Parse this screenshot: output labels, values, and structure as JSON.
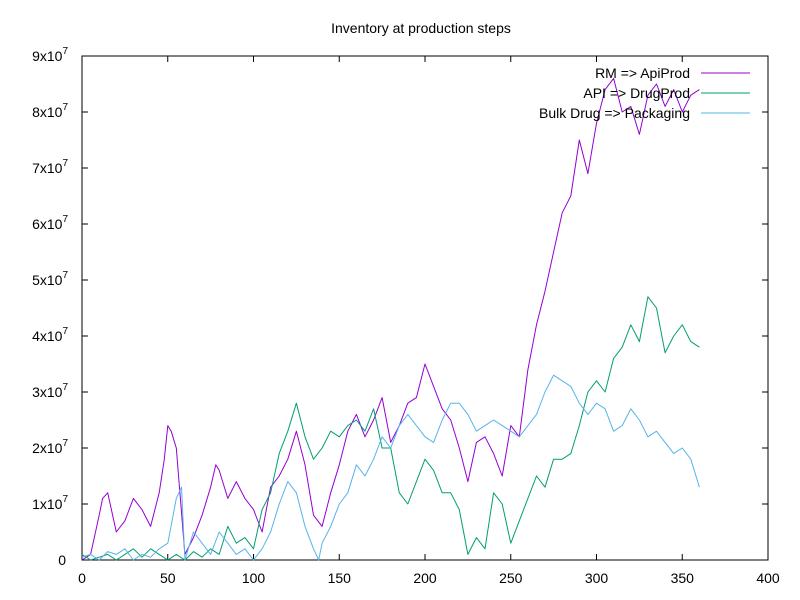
{
  "chart_data": {
    "type": "line",
    "title": "Inventory at production steps",
    "xlabel": "",
    "ylabel": "",
    "xlim": [
      0,
      400
    ],
    "ylim": [
      0,
      90000000
    ],
    "x_ticks": [
      {
        "value": 0,
        "label": "0"
      },
      {
        "value": 50,
        "label": "50"
      },
      {
        "value": 100,
        "label": "100"
      },
      {
        "value": 150,
        "label": "150"
      },
      {
        "value": 200,
        "label": "200"
      },
      {
        "value": 250,
        "label": "250"
      },
      {
        "value": 300,
        "label": "300"
      },
      {
        "value": 350,
        "label": "350"
      },
      {
        "value": 400,
        "label": "400"
      }
    ],
    "y_ticks": [
      {
        "value": 0,
        "label": "0",
        "mantissa": "",
        "exp": ""
      },
      {
        "value": 10000000,
        "label": "1x10^7",
        "mantissa": "1x10",
        "exp": "7"
      },
      {
        "value": 20000000,
        "label": "2x10^7",
        "mantissa": "2x10",
        "exp": "7"
      },
      {
        "value": 30000000,
        "label": "3x10^7",
        "mantissa": "3x10",
        "exp": "7"
      },
      {
        "value": 40000000,
        "label": "4x10^7",
        "mantissa": "4x10",
        "exp": "7"
      },
      {
        "value": 50000000,
        "label": "5x10^7",
        "mantissa": "5x10",
        "exp": "7"
      },
      {
        "value": 60000000,
        "label": "6x10^7",
        "mantissa": "6x10",
        "exp": "7"
      },
      {
        "value": 70000000,
        "label": "7x10^7",
        "mantissa": "7x10",
        "exp": "7"
      },
      {
        "value": 80000000,
        "label": "8x10^7",
        "mantissa": "8x10",
        "exp": "7"
      },
      {
        "value": 90000000,
        "label": "9x10^7",
        "mantissa": "9x10",
        "exp": "7"
      }
    ],
    "grid": false,
    "legend_position": "top-right",
    "series": [
      {
        "name": "RM => ApiProd",
        "color": "#9400d3",
        "x": [
          0,
          5,
          10,
          12,
          15,
          20,
          25,
          30,
          35,
          40,
          45,
          48,
          50,
          52,
          55,
          60,
          65,
          70,
          75,
          78,
          80,
          85,
          90,
          95,
          100,
          105,
          110,
          115,
          120,
          125,
          130,
          135,
          140,
          145,
          150,
          155,
          160,
          165,
          170,
          175,
          180,
          185,
          190,
          195,
          200,
          205,
          210,
          215,
          220,
          225,
          230,
          235,
          240,
          245,
          250,
          255,
          260,
          265,
          270,
          275,
          280,
          285,
          290,
          295,
          300,
          305,
          310,
          315,
          320,
          325,
          330,
          335,
          340,
          345,
          350,
          355,
          360
        ],
        "y": [
          0,
          1000000,
          8000000,
          11000000,
          12000000,
          5000000,
          7000000,
          11000000,
          9000000,
          6000000,
          12000000,
          18000000,
          24000000,
          23000000,
          20000000,
          1000000,
          4000000,
          8000000,
          13000000,
          17000000,
          16000000,
          11000000,
          14000000,
          11000000,
          9000000,
          5000000,
          13000000,
          15000000,
          18000000,
          23000000,
          17000000,
          8000000,
          6000000,
          12000000,
          17000000,
          23000000,
          26000000,
          22000000,
          25000000,
          29000000,
          21000000,
          24000000,
          28000000,
          29000000,
          35000000,
          31000000,
          27000000,
          25000000,
          20000000,
          14000000,
          21000000,
          22000000,
          19000000,
          15000000,
          24000000,
          22000000,
          34000000,
          42000000,
          48000000,
          55000000,
          62000000,
          65000000,
          75000000,
          69000000,
          78000000,
          84000000,
          86000000,
          80000000,
          81000000,
          76000000,
          83000000,
          85000000,
          81000000,
          84000000,
          80000000,
          83000000,
          84000000
        ]
      },
      {
        "name": "API => DrugProd",
        "color": "#009e73",
        "x": [
          0,
          5,
          10,
          15,
          20,
          25,
          30,
          35,
          40,
          45,
          50,
          55,
          60,
          65,
          70,
          75,
          80,
          85,
          90,
          95,
          100,
          105,
          110,
          115,
          120,
          125,
          130,
          135,
          140,
          145,
          150,
          155,
          160,
          165,
          170,
          175,
          180,
          185,
          190,
          195,
          200,
          205,
          210,
          215,
          220,
          225,
          230,
          235,
          240,
          245,
          250,
          255,
          260,
          265,
          270,
          275,
          280,
          285,
          290,
          295,
          300,
          305,
          310,
          315,
          320,
          325,
          330,
          335,
          340,
          345,
          350,
          355,
          360
        ],
        "y": [
          1000000,
          0,
          500000,
          1000000,
          0,
          1000000,
          2000000,
          500000,
          2000000,
          1000000,
          0,
          1000000,
          0,
          1500000,
          500000,
          2000000,
          1000000,
          6000000,
          3000000,
          4000000,
          2000000,
          9000000,
          12000000,
          19000000,
          23000000,
          28000000,
          22000000,
          18000000,
          20000000,
          23000000,
          22000000,
          24000000,
          25000000,
          23000000,
          27000000,
          20000000,
          20000000,
          12000000,
          10000000,
          14000000,
          18000000,
          16000000,
          12000000,
          12000000,
          9000000,
          1000000,
          4000000,
          2000000,
          12000000,
          10000000,
          3000000,
          7000000,
          11000000,
          15000000,
          13000000,
          18000000,
          18000000,
          19000000,
          24000000,
          30000000,
          32000000,
          30000000,
          36000000,
          38000000,
          42000000,
          39000000,
          47000000,
          45000000,
          37000000,
          40000000,
          42000000,
          39000000,
          38000000
        ]
      },
      {
        "name": "Bulk Drug => Packaging",
        "color": "#56b4e9",
        "x": [
          0,
          5,
          10,
          15,
          20,
          25,
          30,
          35,
          40,
          45,
          50,
          55,
          58,
          60,
          65,
          70,
          75,
          80,
          85,
          90,
          95,
          100,
          105,
          110,
          115,
          120,
          125,
          130,
          135,
          138,
          140,
          145,
          150,
          155,
          160,
          165,
          170,
          175,
          180,
          185,
          190,
          195,
          200,
          205,
          210,
          215,
          220,
          225,
          230,
          235,
          240,
          245,
          250,
          255,
          260,
          265,
          270,
          275,
          280,
          285,
          290,
          295,
          300,
          305,
          310,
          315,
          320,
          325,
          330,
          335,
          340,
          345,
          350,
          355,
          360
        ],
        "y": [
          500000,
          1000000,
          0,
          1500000,
          1000000,
          2000000,
          0,
          1000000,
          500000,
          2000000,
          3000000,
          11000000,
          13000000,
          0,
          5000000,
          3000000,
          1000000,
          5000000,
          3000000,
          1000000,
          2000000,
          0,
          2000000,
          5000000,
          10000000,
          14000000,
          12000000,
          6000000,
          2000000,
          0,
          3000000,
          6000000,
          10000000,
          12000000,
          17000000,
          15000000,
          18000000,
          22000000,
          20000000,
          24000000,
          26000000,
          24000000,
          22000000,
          21000000,
          25000000,
          28000000,
          28000000,
          26000000,
          23000000,
          24000000,
          25000000,
          24000000,
          23000000,
          22000000,
          24000000,
          26000000,
          30000000,
          33000000,
          32000000,
          31000000,
          28000000,
          26000000,
          28000000,
          27000000,
          23000000,
          24000000,
          27000000,
          25000000,
          22000000,
          23000000,
          21000000,
          19000000,
          20000000,
          18000000,
          13000000
        ]
      }
    ]
  }
}
